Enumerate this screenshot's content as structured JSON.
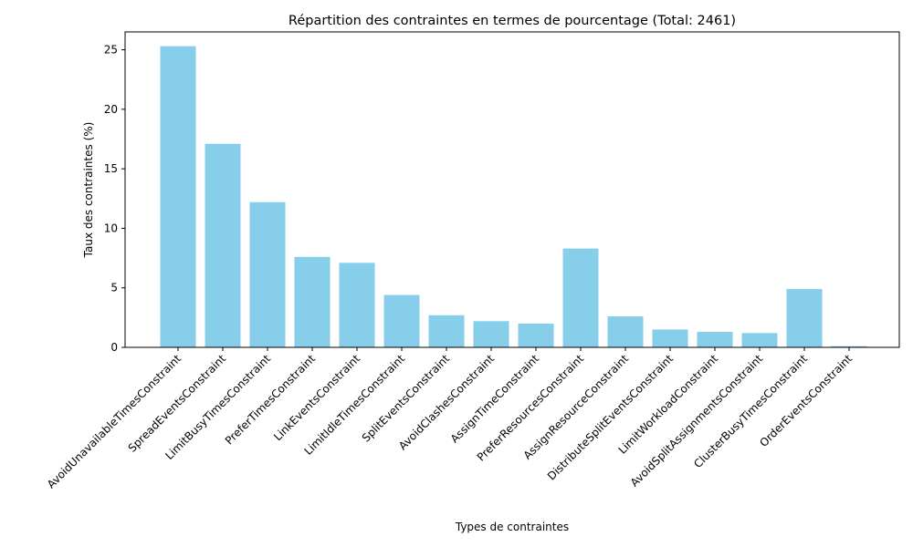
{
  "chart_data": {
    "type": "bar",
    "title": "Répartition des contraintes en termes de pourcentage (Total: 2461)",
    "xlabel": "Types de contraintes",
    "ylabel": "Taux des contraintes (%)",
    "ylim": [
      0,
      26.5
    ],
    "yticks": [
      0,
      5,
      10,
      15,
      20,
      25
    ],
    "ytick_labels": [
      "0",
      "5",
      "10",
      "15",
      "20",
      "25"
    ],
    "bar_color": "#87ceeb",
    "grid": false,
    "categories": [
      "AvoidUnavailableTimesConstraint",
      "SpreadEventsConstraint",
      "LimitBusyTimesConstraint",
      "PreferTimesConstraint",
      "LinkEventsConstraint",
      "LimitIdleTimesConstraint",
      "SplitEventsConstraint",
      "AvoidClashesConstraint",
      "AssignTimeConstraint",
      "PreferResourcesConstraint",
      "AssignResourceConstraint",
      "DistributeSplitEventsConstraint",
      "LimitWorkloadConstraint",
      "AvoidSplitAssignmentsConstraint",
      "ClusterBusyTimesConstraint",
      "OrderEventsConstraint"
    ],
    "values": [
      25.3,
      17.1,
      12.2,
      7.6,
      7.1,
      4.4,
      2.7,
      2.2,
      2.0,
      8.3,
      2.6,
      1.5,
      1.3,
      1.2,
      4.9,
      0.1
    ]
  }
}
